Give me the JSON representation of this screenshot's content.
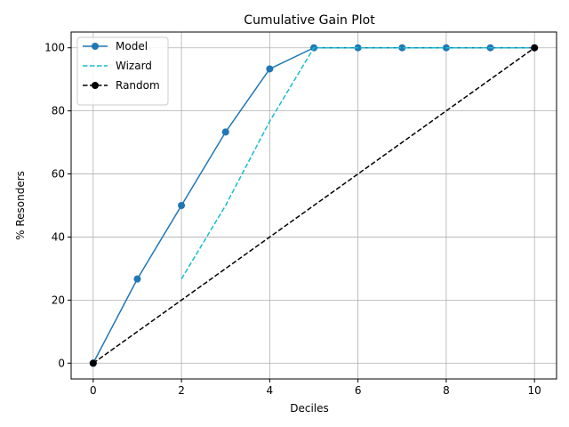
{
  "chart_data": {
    "type": "line",
    "title": "Cumulative Gain Plot",
    "xlabel": "Deciles",
    "ylabel": "% Resonders",
    "xlim": [
      -0.5,
      10.5
    ],
    "ylim": [
      -5,
      105
    ],
    "xticks": [
      0,
      2,
      4,
      6,
      8,
      10
    ],
    "yticks": [
      0,
      20,
      40,
      60,
      80,
      100
    ],
    "grid": true,
    "legend_position": "top-left",
    "series": [
      {
        "name": "Model",
        "color": "#1f77b4",
        "line_style": "solid",
        "marker": "circle",
        "x": [
          0,
          1,
          2,
          3,
          4,
          5,
          6,
          7,
          8,
          9,
          10
        ],
        "y": [
          0,
          26.7,
          50,
          73.3,
          93.3,
          100,
          100,
          100,
          100,
          100,
          100
        ]
      },
      {
        "name": "Wizard",
        "color": "#17becf",
        "line_style": "dashed",
        "marker": "none",
        "x": [
          2,
          3,
          4,
          5,
          6,
          7,
          8,
          9,
          10
        ],
        "y": [
          26.7,
          50,
          76.7,
          100,
          100,
          100,
          100,
          100,
          100
        ]
      },
      {
        "name": "Random",
        "color": "#000000",
        "line_style": "dashed",
        "marker": "circle",
        "x": [
          0,
          10
        ],
        "y": [
          0,
          100
        ]
      }
    ]
  }
}
